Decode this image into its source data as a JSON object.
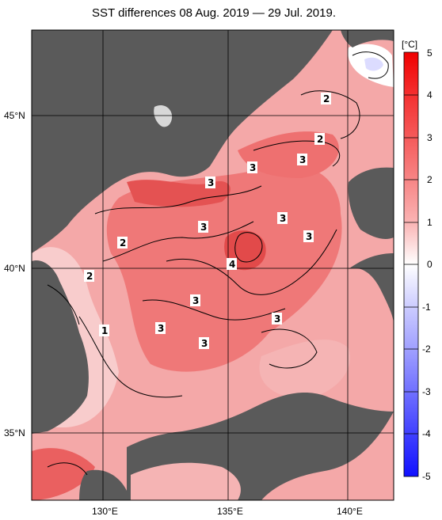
{
  "title": "SST differences 08 Aug. 2019 — 29 Jul. 2019.",
  "axes": {
    "lon_labels": [
      "130°E",
      "135°E",
      "140°E"
    ],
    "lat_labels": [
      "45°N",
      "40°N",
      "35°N"
    ]
  },
  "colorbar": {
    "unit": "[°C]",
    "ticks": [
      "5",
      "4",
      "3",
      "2",
      "1",
      "0",
      "-1",
      "-2",
      "-3",
      "-4",
      "-5"
    ],
    "min": -5,
    "max": 5
  },
  "contour_labels": [
    "2",
    "2",
    "3",
    "3",
    "3",
    "3",
    "3",
    "3",
    "2",
    "2",
    "4",
    "3",
    "1",
    "3",
    "3",
    "3"
  ],
  "colors": {
    "land": "#5a5a5a",
    "sea_base": "#f2a0a0",
    "warm_strong": "#e84848",
    "warm_mid": "#ef7d7d",
    "warm_light": "#f7c4c4",
    "near_zero": "#ffffff",
    "cool": "#3030ff"
  }
}
